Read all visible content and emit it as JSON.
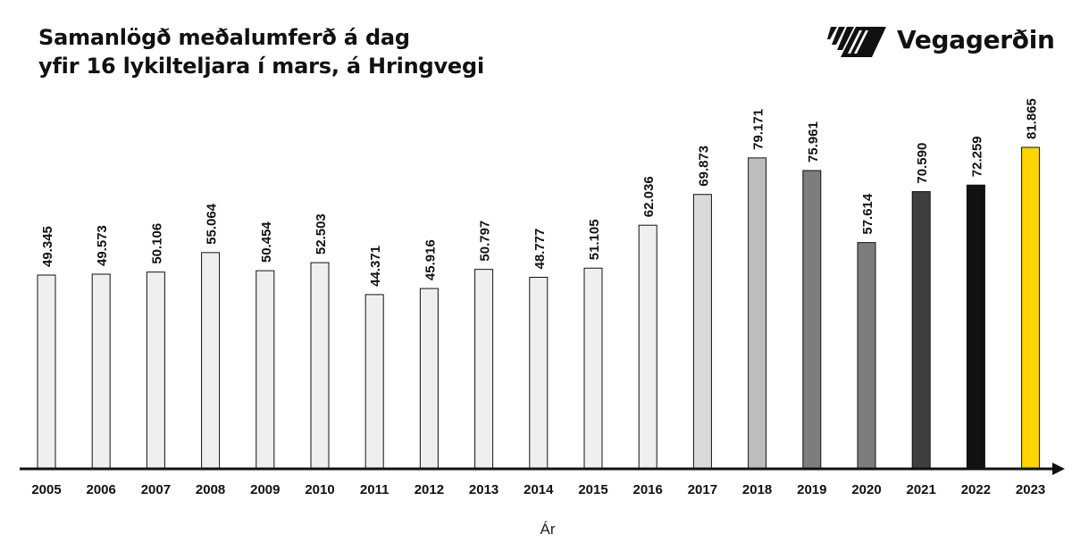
{
  "brand": {
    "name": "Vegagerðin",
    "logo_icon": "vegagerdin-stripes-logo-icon"
  },
  "chart_data": {
    "type": "bar",
    "title": "Samanlögð meðalumferð á dag",
    "subtitle": "yfir 16 lykilteljara í mars, á Hringvegi",
    "xlabel": "Ár",
    "ylabel": "",
    "ylim": [
      0,
      88000
    ],
    "grid": false,
    "legend": "none",
    "categories": [
      "2005",
      "2006",
      "2007",
      "2008",
      "2009",
      "2010",
      "2011",
      "2012",
      "2013",
      "2014",
      "2015",
      "2016",
      "2017",
      "2018",
      "2019",
      "2020",
      "2021",
      "2022",
      "2023"
    ],
    "values": [
      49345,
      49573,
      50106,
      55064,
      50454,
      52503,
      44371,
      45916,
      50797,
      48777,
      51105,
      62036,
      69873,
      79171,
      75961,
      57614,
      70590,
      72259,
      81865
    ],
    "value_labels": [
      "49.345",
      "49.573",
      "50.106",
      "55.064",
      "50.454",
      "52.503",
      "44.371",
      "45.916",
      "50.797",
      "48.777",
      "51.105",
      "62.036",
      "69.873",
      "79.171",
      "75.961",
      "57.614",
      "70.590",
      "72.259",
      "81.865"
    ],
    "bar_colors": [
      "#efefef",
      "#efefef",
      "#efefef",
      "#efefef",
      "#efefef",
      "#efefef",
      "#efefef",
      "#efefef",
      "#efefef",
      "#efefef",
      "#efefef",
      "#efefef",
      "#dadada",
      "#bdbdbd",
      "#7d7d7d",
      "#7d7d7d",
      "#3f3f3f",
      "#111111",
      "#ffd400"
    ]
  }
}
